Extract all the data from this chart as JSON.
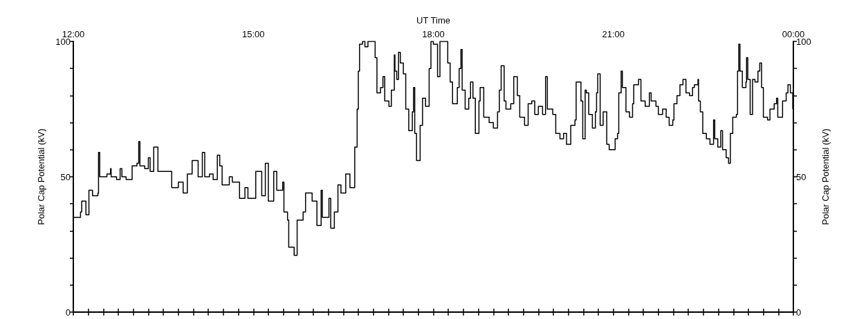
{
  "chart_data": {
    "type": "step",
    "xlabel": "UT Time",
    "ylabel": "Polar Cap Potential (kV)",
    "y2label": "Polar Cap Potential (kV)",
    "x": [
      12.0,
      12.12,
      12.14,
      12.21,
      12.26,
      12.32,
      12.41,
      12.42,
      12.44,
      12.56,
      12.62,
      12.63,
      12.72,
      12.78,
      12.81,
      12.88,
      12.98,
      13.06,
      13.09,
      13.11,
      13.19,
      13.25,
      13.28,
      13.34,
      13.41,
      13.48,
      13.57,
      13.64,
      13.75,
      13.83,
      13.9,
      13.98,
      14.08,
      14.15,
      14.19,
      14.27,
      14.33,
      14.4,
      14.44,
      14.48,
      14.6,
      14.65,
      14.77,
      14.86,
      14.91,
      14.95,
      15.04,
      15.14,
      15.2,
      15.25,
      15.34,
      15.39,
      15.49,
      15.51,
      15.57,
      15.59,
      15.68,
      15.73,
      15.83,
      15.87,
      15.98,
      16.06,
      16.13,
      16.15,
      16.26,
      16.29,
      16.35,
      16.41,
      16.46,
      16.54,
      16.61,
      16.69,
      16.73,
      16.75,
      16.77,
      16.82,
      16.86,
      16.91,
      17.03,
      17.06,
      17.12,
      17.16,
      17.19,
      17.26,
      17.3,
      17.35,
      17.36,
      17.39,
      17.42,
      17.45,
      17.5,
      17.54,
      17.59,
      17.65,
      17.67,
      17.69,
      17.72,
      17.78,
      17.82,
      17.87,
      17.93,
      17.96,
      18.0,
      18.07,
      18.11,
      18.24,
      18.28,
      18.32,
      18.4,
      18.43,
      18.46,
      18.48,
      18.53,
      18.59,
      18.62,
      18.66,
      18.7,
      18.76,
      18.78,
      18.84,
      18.93,
      19.0,
      19.07,
      19.1,
      19.13,
      19.18,
      19.21,
      19.29,
      19.34,
      19.4,
      19.44,
      19.52,
      19.58,
      19.64,
      19.69,
      19.75,
      19.82,
      19.87,
      19.9,
      19.99,
      20.04,
      20.11,
      20.17,
      20.22,
      20.29,
      20.36,
      20.38,
      20.41,
      20.46,
      20.49,
      20.53,
      20.55,
      20.59,
      20.65,
      20.7,
      20.72,
      20.74,
      20.78,
      20.83,
      20.89,
      20.93,
      21.03,
      21.07,
      21.09,
      21.13,
      21.15,
      21.21,
      21.27,
      21.32,
      21.34,
      21.42,
      21.46,
      21.53,
      21.6,
      21.63,
      21.71,
      21.75,
      21.82,
      21.88,
      21.93,
      21.99,
      22.01,
      22.06,
      22.11,
      22.16,
      22.21,
      22.27,
      22.32,
      22.35,
      22.41,
      22.42,
      22.45,
      22.49,
      22.55,
      22.61,
      22.67,
      22.69,
      22.74,
      22.79,
      22.82,
      22.88,
      22.92,
      22.95,
      22.99,
      23.05,
      23.07,
      23.09,
      23.11,
      23.15,
      23.21,
      23.22,
      23.24,
      23.28,
      23.32,
      23.36,
      23.41,
      23.44,
      23.47,
      23.5,
      23.57,
      23.61,
      23.68,
      23.72,
      23.74,
      23.82,
      23.88,
      23.91,
      23.95,
      23.99
    ],
    "values": [
      35,
      37,
      41,
      36,
      45,
      43,
      44,
      59,
      50,
      51,
      53,
      50,
      49,
      53,
      50,
      49,
      54,
      55,
      63,
      54,
      53,
      57,
      52,
      61,
      52,
      52,
      52,
      46,
      48,
      44,
      51,
      56,
      50,
      59,
      50,
      51,
      49,
      58,
      54,
      47,
      50,
      48,
      42,
      46,
      42,
      42,
      52,
      43,
      55,
      41,
      52,
      45,
      48,
      37,
      34,
      24,
      21,
      34,
      37,
      44,
      41,
      32,
      45,
      35,
      42,
      31,
      37,
      47,
      44,
      51,
      46,
      61,
      75,
      89,
      99,
      100,
      98,
      100,
      94,
      81,
      83,
      87,
      78,
      76,
      82,
      95,
      89,
      86,
      96,
      92,
      88,
      75,
      67,
      74,
      83,
      66,
      56,
      69,
      79,
      76,
      90,
      100,
      99,
      87,
      100,
      92,
      85,
      77,
      83,
      90,
      97,
      82,
      75,
      79,
      85,
      79,
      66,
      78,
      83,
      72,
      70,
      68,
      74,
      82,
      91,
      78,
      75,
      77,
      87,
      80,
      72,
      69,
      77,
      78,
      73,
      76,
      73,
      87,
      75,
      73,
      66,
      64,
      66,
      62,
      69,
      71,
      85,
      85,
      78,
      64,
      82,
      81,
      73,
      68,
      74,
      81,
      88,
      69,
      74,
      62,
      60,
      64,
      66,
      81,
      89,
      83,
      74,
      72,
      77,
      84,
      86,
      78,
      76,
      81,
      78,
      76,
      73,
      75,
      72,
      69,
      71,
      77,
      80,
      84,
      86,
      81,
      80,
      83,
      84,
      86,
      78,
      74,
      66,
      64,
      62,
      71,
      64,
      61,
      67,
      60,
      57,
      55,
      66,
      72,
      73,
      89,
      99,
      89,
      83,
      85,
      94,
      86,
      73,
      86,
      85,
      89,
      92,
      83,
      72,
      71,
      75,
      77,
      79,
      72,
      78,
      81,
      84,
      81,
      75
    ],
    "color": "#000000",
    "xlim": [
      12,
      24
    ],
    "xticks": [
      {
        "value": 12,
        "label": "12:00"
      },
      {
        "value": 12.25,
        "label": null
      },
      {
        "value": 12.5,
        "label": null
      },
      {
        "value": 12.75,
        "label": null
      },
      {
        "value": 13,
        "label": null
      },
      {
        "value": 13.25,
        "label": null
      },
      {
        "value": 13.5,
        "label": null
      },
      {
        "value": 13.75,
        "label": null
      },
      {
        "value": 14,
        "label": null
      },
      {
        "value": 14.25,
        "label": null
      },
      {
        "value": 14.5,
        "label": null
      },
      {
        "value": 14.75,
        "label": null
      },
      {
        "value": 15,
        "label": "15:00"
      },
      {
        "value": 15.25,
        "label": null
      },
      {
        "value": 15.5,
        "label": null
      },
      {
        "value": 15.75,
        "label": null
      },
      {
        "value": 16,
        "label": null
      },
      {
        "value": 16.25,
        "label": null
      },
      {
        "value": 16.5,
        "label": null
      },
      {
        "value": 16.75,
        "label": null
      },
      {
        "value": 17,
        "label": null
      },
      {
        "value": 17.25,
        "label": null
      },
      {
        "value": 17.5,
        "label": null
      },
      {
        "value": 17.75,
        "label": null
      },
      {
        "value": 18,
        "label": "18:00"
      },
      {
        "value": 18.25,
        "label": null
      },
      {
        "value": 18.5,
        "label": null
      },
      {
        "value": 18.75,
        "label": null
      },
      {
        "value": 19,
        "label": null
      },
      {
        "value": 19.25,
        "label": null
      },
      {
        "value": 19.5,
        "label": null
      },
      {
        "value": 19.75,
        "label": null
      },
      {
        "value": 20,
        "label": null
      },
      {
        "value": 20.25,
        "label": null
      },
      {
        "value": 20.5,
        "label": null
      },
      {
        "value": 20.75,
        "label": null
      },
      {
        "value": 21,
        "label": "21:00"
      },
      {
        "value": 21.25,
        "label": null
      },
      {
        "value": 21.5,
        "label": null
      },
      {
        "value": 21.75,
        "label": null
      },
      {
        "value": 22,
        "label": null
      },
      {
        "value": 22.25,
        "label": null
      },
      {
        "value": 22.5,
        "label": null
      },
      {
        "value": 22.75,
        "label": null
      },
      {
        "value": 23,
        "label": null
      },
      {
        "value": 23.25,
        "label": null
      },
      {
        "value": 23.5,
        "label": null
      },
      {
        "value": 23.75,
        "label": null
      },
      {
        "value": 24,
        "label": "00:00"
      }
    ],
    "ylim": [
      0,
      100
    ],
    "yticks": [
      0,
      {
        "value": 10,
        "label": null
      },
      {
        "value": 20,
        "label": null
      },
      {
        "value": 30,
        "label": null
      },
      {
        "value": 40,
        "label": null
      },
      50,
      {
        "value": 60,
        "label": null
      },
      {
        "value": 70,
        "label": null
      },
      {
        "value": 80,
        "label": null
      },
      {
        "value": 90,
        "label": null
      },
      100
    ],
    "y2lim": [
      0,
      100
    ],
    "y2ticks": [
      0,
      {
        "value": 10,
        "label": null
      },
      {
        "value": 20,
        "label": null
      },
      {
        "value": 30,
        "label": null
      },
      {
        "value": 40,
        "label": null
      },
      50,
      {
        "value": 60,
        "label": null
      },
      {
        "value": 70,
        "label": null
      },
      {
        "value": 80,
        "label": null
      },
      {
        "value": 90,
        "label": null
      },
      100
    ],
    "marker": "none",
    "line_style": "solid"
  }
}
